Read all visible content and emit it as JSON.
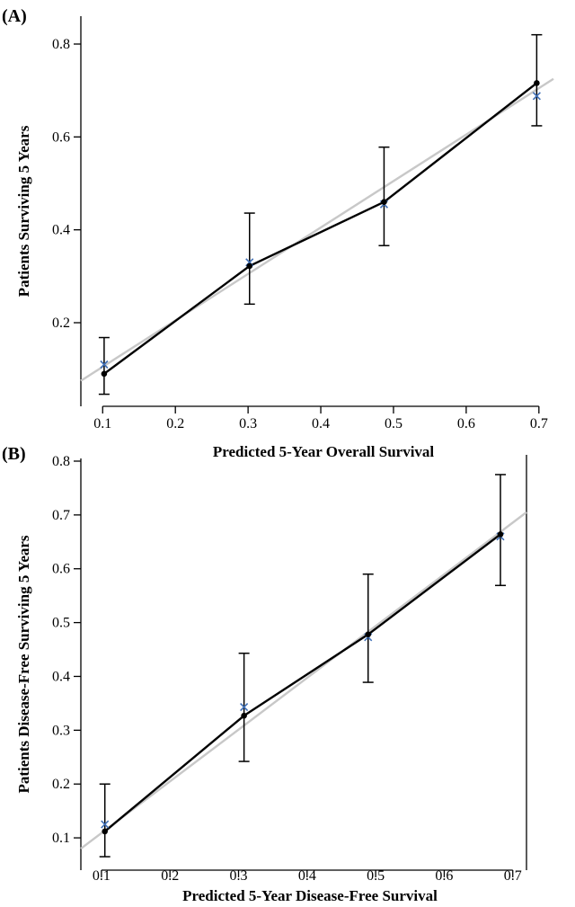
{
  "chart_data": [
    {
      "type": "scatter",
      "panel_label": "(A)",
      "xlabel": "Predicted 5-Year Overall Survival",
      "ylabel": "Patients Surviving 5 Years",
      "xlim": [
        0.07,
        0.72
      ],
      "ylim": [
        0.02,
        0.86
      ],
      "xticks": [
        0.1,
        0.2,
        0.3,
        0.4,
        0.5,
        0.6,
        0.7
      ],
      "xtick_labels": [
        "0.1",
        "0.2",
        "0.3",
        "0.4",
        "0.5",
        "0.6",
        "0.7"
      ],
      "yticks": [
        0.2,
        0.4,
        0.6,
        0.8
      ],
      "ytick_labels": [
        "0.2",
        "0.4",
        "0.6",
        "0.8"
      ],
      "reference_line": [
        [
          0.07,
          0.075
        ],
        [
          0.72,
          0.725
        ]
      ],
      "x": [
        0.102,
        0.302,
        0.487,
        0.697
      ],
      "observed": [
        0.09,
        0.322,
        0.46,
        0.716
      ],
      "ci_lower": [
        0.046,
        0.24,
        0.366,
        0.624
      ],
      "ci_upper": [
        0.168,
        0.436,
        0.578,
        0.82
      ],
      "bias_corrected": [
        0.11,
        0.33,
        0.455,
        0.688
      ],
      "colors": {
        "observed": "#000000",
        "bias_corrected": "#3f6fb6",
        "reference": "#c8c8c8"
      }
    },
    {
      "type": "scatter",
      "panel_label": "(B)",
      "xlabel": "Predicted 5-Year Disease-Free Survival",
      "ylabel": "Patients Disease-Free Surviving 5 Years",
      "xlim": [
        0.07,
        0.72
      ],
      "ylim": [
        0.04,
        0.805
      ],
      "xticks": [
        0.1,
        0.2,
        0.3,
        0.4,
        0.5,
        0.6,
        0.7
      ],
      "xtick_labels": [
        "0.1",
        "0.2",
        "0.3",
        "0.4",
        "0.5",
        "0.6",
        "0.7"
      ],
      "yticks": [
        0.1,
        0.2,
        0.3,
        0.4,
        0.5,
        0.6,
        0.7,
        0.8
      ],
      "ytick_labels": [
        "0.1",
        "0.2",
        "0.3",
        "0.4",
        "0.5",
        "0.6",
        "0.7",
        "0.8"
      ],
      "reference_line": [
        [
          0.07,
          0.08
        ],
        [
          0.72,
          0.705
        ]
      ],
      "x": [
        0.105,
        0.308,
        0.489,
        0.682
      ],
      "observed": [
        0.112,
        0.327,
        0.478,
        0.664
      ],
      "ci_lower": [
        0.065,
        0.242,
        0.389,
        0.569
      ],
      "ci_upper": [
        0.2,
        0.443,
        0.59,
        0.775
      ],
      "bias_corrected": [
        0.125,
        0.343,
        0.473,
        0.66
      ],
      "colors": {
        "observed": "#000000",
        "bias_corrected": "#3f6fb6",
        "reference": "#c8c8c8"
      }
    }
  ]
}
